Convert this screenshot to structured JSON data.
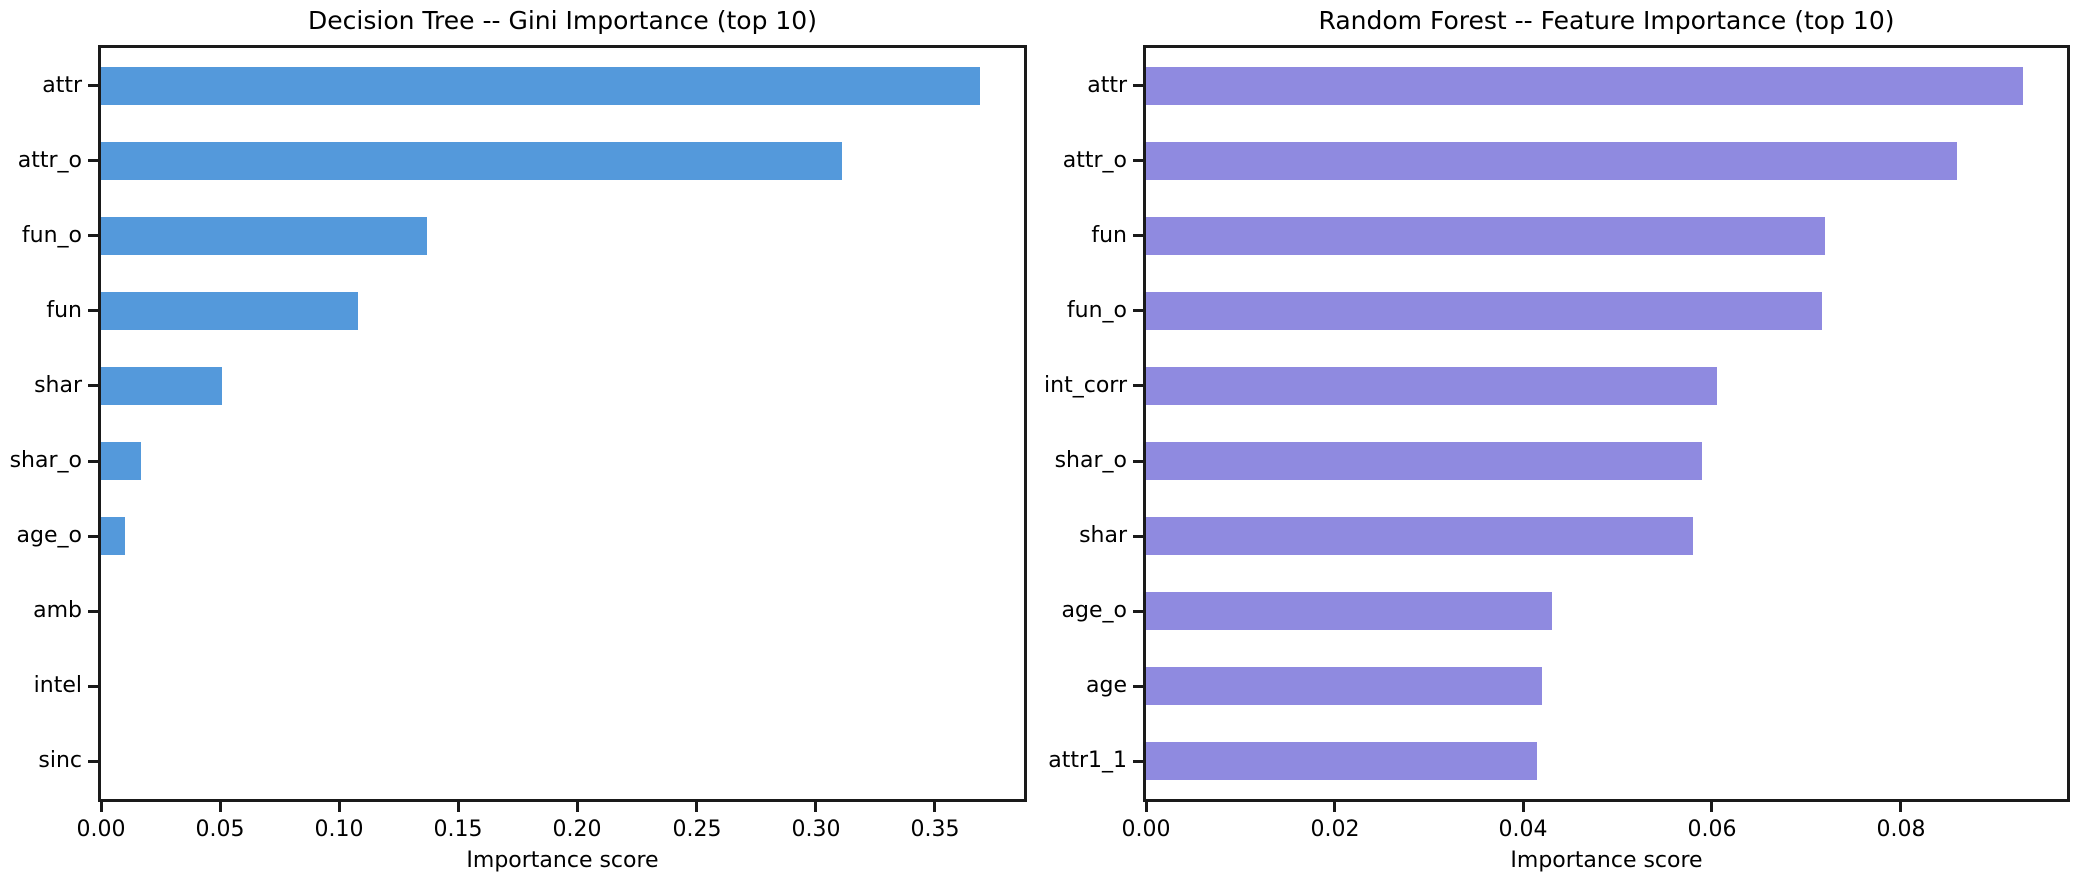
{
  "figure": {
    "background": "#ffffff",
    "text_color": "#000000",
    "spine_color": "#1a1a1a"
  },
  "chart_data": [
    {
      "type": "bar",
      "orientation": "horizontal",
      "title": "Decision Tree -- Gini Importance (top 10)",
      "xlabel": "Importance score",
      "categories": [
        "attr",
        "attr_o",
        "fun_o",
        "fun",
        "shar",
        "shar_o",
        "age_o",
        "amb",
        "intel",
        "sinc"
      ],
      "values": [
        0.369,
        0.311,
        0.137,
        0.108,
        0.051,
        0.017,
        0.01,
        0.0,
        0.0,
        0.0
      ],
      "bar_color": "#5499DB",
      "xlim": [
        0,
        0.38745
      ],
      "xticks": [
        0.0,
        0.05,
        0.1,
        0.15,
        0.2,
        0.25,
        0.3,
        0.35
      ],
      "xtick_labels": [
        "0.00",
        "0.05",
        "0.10",
        "0.15",
        "0.20",
        "0.25",
        "0.30",
        "0.35"
      ],
      "grid": false,
      "legend": null
    },
    {
      "type": "bar",
      "orientation": "horizontal",
      "title": "Random Forest -- Feature Importance (top 10)",
      "xlabel": "Importance score",
      "categories": [
        "attr",
        "attr_o",
        "fun",
        "fun_o",
        "int_corr",
        "shar_o",
        "shar",
        "age_o",
        "age",
        "attr1_1"
      ],
      "values": [
        0.093,
        0.086,
        0.072,
        0.0717,
        0.0605,
        0.059,
        0.058,
        0.043,
        0.042,
        0.0415
      ],
      "bar_color": "#8F8AE0",
      "xlim": [
        0,
        0.09765
      ],
      "xticks": [
        0.0,
        0.02,
        0.04,
        0.06,
        0.08
      ],
      "xtick_labels": [
        "0.00",
        "0.02",
        "0.04",
        "0.06",
        "0.08"
      ],
      "grid": false,
      "legend": null
    }
  ]
}
